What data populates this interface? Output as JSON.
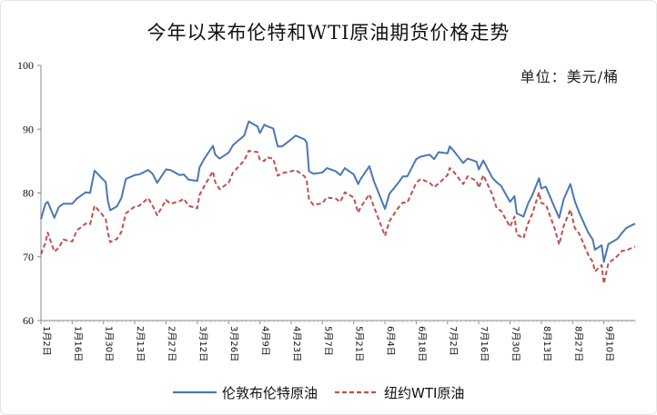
{
  "chart_data": {
    "type": "line",
    "title": "今年以来布伦特和WTI原油期货价格走势",
    "unit_label": "单位：美元/桶",
    "ylim": [
      60,
      100
    ],
    "yticks": [
      60,
      70,
      80,
      90,
      100
    ],
    "x_range": [
      "2024-01-02",
      "2024-09-24"
    ],
    "xticks": [
      "1月2日",
      "1月16日",
      "1月30日",
      "2月13日",
      "2月27日",
      "3月12日",
      "3月26日",
      "4月9日",
      "4月23日",
      "5月7日",
      "5月21日",
      "6月4日",
      "6月18日",
      "7月2日",
      "7月16日",
      "7月30日",
      "8月13日",
      "8月27日",
      "9月10日"
    ],
    "grid": false,
    "legend_position": "bottom",
    "series": [
      {
        "name": "伦敦布伦特原油",
        "color": "#4a77b4",
        "style": "solid",
        "points": [
          [
            "2024-01-02",
            75.9
          ],
          [
            "2024-01-04",
            78.3
          ],
          [
            "2024-01-05",
            78.6
          ],
          [
            "2024-01-08",
            76.1
          ],
          [
            "2024-01-10",
            77.8
          ],
          [
            "2024-01-12",
            78.3
          ],
          [
            "2024-01-16",
            78.3
          ],
          [
            "2024-01-18",
            79.1
          ],
          [
            "2024-01-22",
            80.1
          ],
          [
            "2024-01-24",
            80.0
          ],
          [
            "2024-01-26",
            83.5
          ],
          [
            "2024-01-29",
            82.4
          ],
          [
            "2024-01-31",
            81.7
          ],
          [
            "2024-02-01",
            78.7
          ],
          [
            "2024-02-02",
            77.3
          ],
          [
            "2024-02-05",
            77.9
          ],
          [
            "2024-02-07",
            79.2
          ],
          [
            "2024-02-09",
            82.2
          ],
          [
            "2024-02-13",
            82.8
          ],
          [
            "2024-02-15",
            82.9
          ],
          [
            "2024-02-19",
            83.6
          ],
          [
            "2024-02-21",
            83.0
          ],
          [
            "2024-02-23",
            81.6
          ],
          [
            "2024-02-27",
            83.7
          ],
          [
            "2024-02-29",
            83.6
          ],
          [
            "2024-03-04",
            82.8
          ],
          [
            "2024-03-06",
            82.9
          ],
          [
            "2024-03-08",
            82.1
          ],
          [
            "2024-03-12",
            81.9
          ],
          [
            "2024-03-13",
            84.0
          ],
          [
            "2024-03-15",
            85.3
          ],
          [
            "2024-03-19",
            87.4
          ],
          [
            "2024-03-20",
            86.0
          ],
          [
            "2024-03-22",
            85.4
          ],
          [
            "2024-03-26",
            86.3
          ],
          [
            "2024-03-28",
            87.5
          ],
          [
            "2024-04-02",
            89.0
          ],
          [
            "2024-04-04",
            91.2
          ],
          [
            "2024-04-08",
            90.4
          ],
          [
            "2024-04-09",
            89.4
          ],
          [
            "2024-04-11",
            90.7
          ],
          [
            "2024-04-12",
            90.5
          ],
          [
            "2024-04-15",
            90.1
          ],
          [
            "2024-04-17",
            87.3
          ],
          [
            "2024-04-19",
            87.3
          ],
          [
            "2024-04-23",
            88.4
          ],
          [
            "2024-04-25",
            89.0
          ],
          [
            "2024-04-29",
            88.4
          ],
          [
            "2024-04-30",
            87.9
          ],
          [
            "2024-05-01",
            83.4
          ],
          [
            "2024-05-03",
            83.0
          ],
          [
            "2024-05-07",
            83.2
          ],
          [
            "2024-05-09",
            83.9
          ],
          [
            "2024-05-13",
            83.4
          ],
          [
            "2024-05-15",
            82.8
          ],
          [
            "2024-05-17",
            83.9
          ],
          [
            "2024-05-21",
            82.9
          ],
          [
            "2024-05-23",
            81.4
          ],
          [
            "2024-05-24",
            82.1
          ],
          [
            "2024-05-28",
            84.2
          ],
          [
            "2024-05-30",
            81.9
          ],
          [
            "2024-06-03",
            78.4
          ],
          [
            "2024-06-04",
            77.5
          ],
          [
            "2024-06-06",
            79.9
          ],
          [
            "2024-06-10",
            81.6
          ],
          [
            "2024-06-12",
            82.6
          ],
          [
            "2024-06-14",
            82.6
          ],
          [
            "2024-06-18",
            85.3
          ],
          [
            "2024-06-20",
            85.7
          ],
          [
            "2024-06-24",
            86.0
          ],
          [
            "2024-06-26",
            85.3
          ],
          [
            "2024-06-28",
            86.4
          ],
          [
            "2024-07-02",
            86.2
          ],
          [
            "2024-07-03",
            87.3
          ],
          [
            "2024-07-05",
            86.5
          ],
          [
            "2024-07-09",
            84.7
          ],
          [
            "2024-07-11",
            85.4
          ],
          [
            "2024-07-15",
            84.9
          ],
          [
            "2024-07-16",
            83.7
          ],
          [
            "2024-07-18",
            85.1
          ],
          [
            "2024-07-22",
            82.4
          ],
          [
            "2024-07-24",
            81.7
          ],
          [
            "2024-07-26",
            81.1
          ],
          [
            "2024-07-30",
            78.6
          ],
          [
            "2024-08-01",
            79.5
          ],
          [
            "2024-08-02",
            76.8
          ],
          [
            "2024-08-05",
            76.3
          ],
          [
            "2024-08-07",
            78.3
          ],
          [
            "2024-08-09",
            79.7
          ],
          [
            "2024-08-12",
            82.3
          ],
          [
            "2024-08-13",
            80.7
          ],
          [
            "2024-08-15",
            81.0
          ],
          [
            "2024-08-19",
            77.7
          ],
          [
            "2024-08-21",
            76.1
          ],
          [
            "2024-08-23",
            79.0
          ],
          [
            "2024-08-26",
            81.4
          ],
          [
            "2024-08-28",
            78.7
          ],
          [
            "2024-08-30",
            76.9
          ],
          [
            "2024-09-03",
            73.8
          ],
          [
            "2024-09-05",
            72.7
          ],
          [
            "2024-09-06",
            71.1
          ],
          [
            "2024-09-09",
            71.8
          ],
          [
            "2024-09-10",
            69.2
          ],
          [
            "2024-09-12",
            71.97
          ],
          [
            "2024-09-16",
            72.8
          ],
          [
            "2024-09-18",
            73.7
          ],
          [
            "2024-09-20",
            74.5
          ],
          [
            "2024-09-24",
            75.2
          ]
        ]
      },
      {
        "name": "纽约WTI原油",
        "color": "#c0504d",
        "style": "dashed",
        "points": [
          [
            "2024-01-02",
            70.4
          ],
          [
            "2024-01-04",
            72.2
          ],
          [
            "2024-01-05",
            73.8
          ],
          [
            "2024-01-08",
            70.8
          ],
          [
            "2024-01-10",
            71.4
          ],
          [
            "2024-01-12",
            72.7
          ],
          [
            "2024-01-16",
            72.4
          ],
          [
            "2024-01-18",
            74.1
          ],
          [
            "2024-01-22",
            75.2
          ],
          [
            "2024-01-24",
            75.1
          ],
          [
            "2024-01-26",
            78.0
          ],
          [
            "2024-01-29",
            76.8
          ],
          [
            "2024-01-31",
            75.9
          ],
          [
            "2024-02-01",
            73.8
          ],
          [
            "2024-02-02",
            72.3
          ],
          [
            "2024-02-05",
            72.8
          ],
          [
            "2024-02-07",
            73.9
          ],
          [
            "2024-02-09",
            76.8
          ],
          [
            "2024-02-13",
            77.9
          ],
          [
            "2024-02-15",
            78.0
          ],
          [
            "2024-02-19",
            79.2
          ],
          [
            "2024-02-21",
            78.0
          ],
          [
            "2024-02-23",
            76.5
          ],
          [
            "2024-02-27",
            78.9
          ],
          [
            "2024-02-29",
            78.3
          ],
          [
            "2024-03-04",
            78.7
          ],
          [
            "2024-03-06",
            79.1
          ],
          [
            "2024-03-08",
            78.0
          ],
          [
            "2024-03-12",
            77.6
          ],
          [
            "2024-03-13",
            79.7
          ],
          [
            "2024-03-15",
            81.0
          ],
          [
            "2024-03-19",
            83.4
          ],
          [
            "2024-03-20",
            81.7
          ],
          [
            "2024-03-22",
            80.6
          ],
          [
            "2024-03-26",
            81.6
          ],
          [
            "2024-03-28",
            83.2
          ],
          [
            "2024-04-02",
            85.1
          ],
          [
            "2024-04-04",
            86.6
          ],
          [
            "2024-04-08",
            86.4
          ],
          [
            "2024-04-09",
            85.2
          ],
          [
            "2024-04-11",
            85.0
          ],
          [
            "2024-04-12",
            85.6
          ],
          [
            "2024-04-15",
            85.4
          ],
          [
            "2024-04-17",
            82.7
          ],
          [
            "2024-04-19",
            83.1
          ],
          [
            "2024-04-23",
            83.4
          ],
          [
            "2024-04-25",
            83.6
          ],
          [
            "2024-04-29",
            82.6
          ],
          [
            "2024-04-30",
            81.9
          ],
          [
            "2024-05-01",
            79.0
          ],
          [
            "2024-05-03",
            78.1
          ],
          [
            "2024-05-07",
            78.4
          ],
          [
            "2024-05-09",
            79.3
          ],
          [
            "2024-05-13",
            79.1
          ],
          [
            "2024-05-15",
            78.6
          ],
          [
            "2024-05-17",
            80.1
          ],
          [
            "2024-05-21",
            79.3
          ],
          [
            "2024-05-23",
            76.9
          ],
          [
            "2024-05-24",
            77.7
          ],
          [
            "2024-05-28",
            79.8
          ],
          [
            "2024-05-30",
            77.9
          ],
          [
            "2024-06-03",
            74.2
          ],
          [
            "2024-06-04",
            73.3
          ],
          [
            "2024-06-06",
            75.6
          ],
          [
            "2024-06-10",
            77.7
          ],
          [
            "2024-06-12",
            78.5
          ],
          [
            "2024-06-14",
            78.5
          ],
          [
            "2024-06-18",
            81.6
          ],
          [
            "2024-06-20",
            82.2
          ],
          [
            "2024-06-24",
            81.6
          ],
          [
            "2024-06-26",
            80.9
          ],
          [
            "2024-06-28",
            81.5
          ],
          [
            "2024-07-02",
            82.8
          ],
          [
            "2024-07-03",
            83.9
          ],
          [
            "2024-07-05",
            83.2
          ],
          [
            "2024-07-09",
            81.4
          ],
          [
            "2024-07-11",
            82.6
          ],
          [
            "2024-07-15",
            81.9
          ],
          [
            "2024-07-16",
            80.8
          ],
          [
            "2024-07-18",
            82.8
          ],
          [
            "2024-07-22",
            79.8
          ],
          [
            "2024-07-24",
            77.6
          ],
          [
            "2024-07-26",
            77.2
          ],
          [
            "2024-07-30",
            74.7
          ],
          [
            "2024-08-01",
            76.3
          ],
          [
            "2024-08-02",
            73.5
          ],
          [
            "2024-08-05",
            72.9
          ],
          [
            "2024-08-07",
            75.2
          ],
          [
            "2024-08-09",
            76.8
          ],
          [
            "2024-08-12",
            80.1
          ],
          [
            "2024-08-13",
            78.4
          ],
          [
            "2024-08-15",
            78.2
          ],
          [
            "2024-08-19",
            74.4
          ],
          [
            "2024-08-21",
            71.9
          ],
          [
            "2024-08-23",
            74.8
          ],
          [
            "2024-08-26",
            77.4
          ],
          [
            "2024-08-28",
            74.5
          ],
          [
            "2024-08-30",
            73.6
          ],
          [
            "2024-09-03",
            70.3
          ],
          [
            "2024-09-05",
            69.2
          ],
          [
            "2024-09-06",
            67.7
          ],
          [
            "2024-09-09",
            68.7
          ],
          [
            "2024-09-10",
            65.8
          ],
          [
            "2024-09-12",
            68.97
          ],
          [
            "2024-09-16",
            70.1
          ],
          [
            "2024-09-18",
            70.9
          ],
          [
            "2024-09-20",
            71.0
          ],
          [
            "2024-09-24",
            71.6
          ]
        ]
      }
    ]
  }
}
